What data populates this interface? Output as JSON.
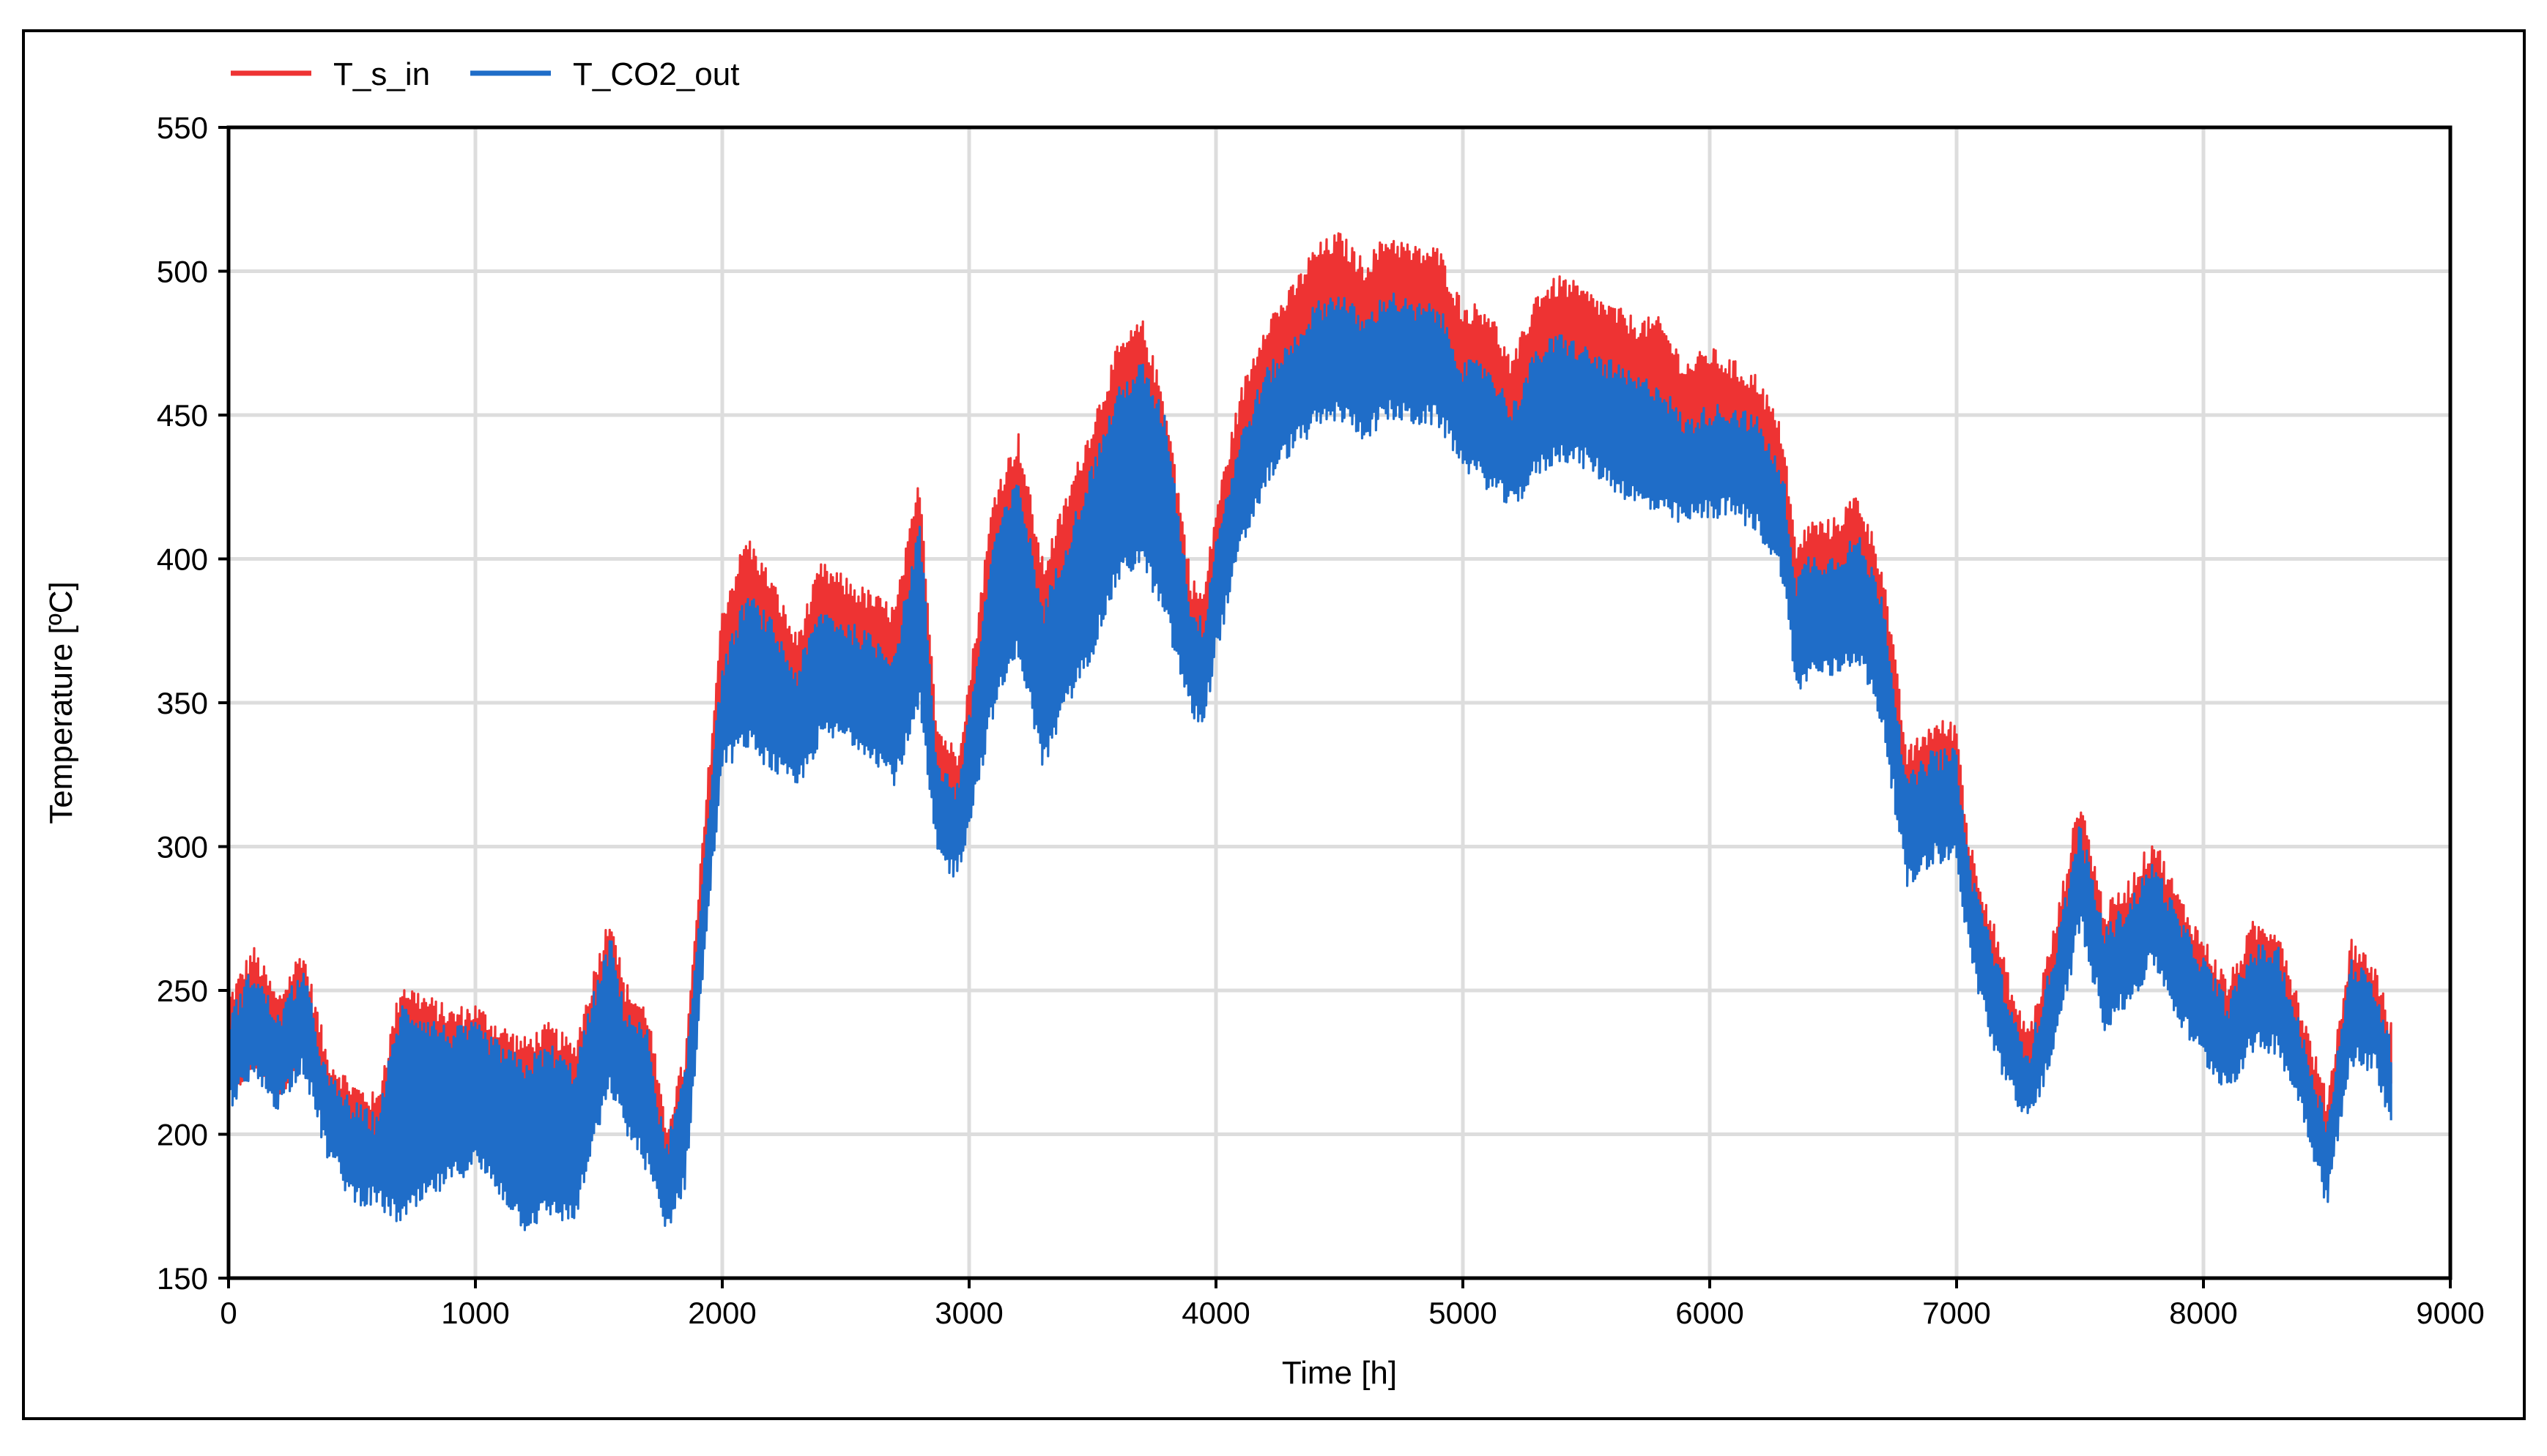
{
  "chart_data": {
    "type": "line",
    "title": "",
    "xlabel": "Time [h]",
    "ylabel": "Temperature [ºC]",
    "xlim": [
      0,
      9000
    ],
    "ylim": [
      150,
      550
    ],
    "xticks": [
      0,
      1000,
      2000,
      3000,
      4000,
      5000,
      6000,
      7000,
      8000,
      9000
    ],
    "yticks": [
      150,
      200,
      250,
      300,
      350,
      400,
      450,
      500,
      550
    ],
    "xtick_labels": [
      "0",
      "1000",
      "2000",
      "3000",
      "4000",
      "5000",
      "6000",
      "7000",
      "8000",
      "9000"
    ],
    "ytick_labels": [
      "150",
      "200",
      "250",
      "300",
      "350",
      "400",
      "450",
      "500",
      "550"
    ],
    "grid": true,
    "legend_position": "top-left",
    "series": [
      {
        "name": "T_s_in",
        "color": "#ee3333",
        "x": [
          0,
          100,
          200,
          300,
          400,
          500,
          600,
          700,
          800,
          900,
          1000,
          1100,
          1200,
          1300,
          1400,
          1500,
          1550,
          1600,
          1700,
          1770,
          1850,
          1950,
          2000,
          2100,
          2200,
          2300,
          2400,
          2500,
          2600,
          2700,
          2800,
          2870,
          2950,
          3000,
          3100,
          3200,
          3300,
          3400,
          3500,
          3600,
          3700,
          3800,
          3900,
          3950,
          4000,
          4100,
          4200,
          4300,
          4400,
          4500,
          4600,
          4700,
          4800,
          4900,
          5000,
          5100,
          5200,
          5300,
          5400,
          5500,
          5600,
          5700,
          5800,
          5900,
          6000,
          6100,
          6200,
          6300,
          6350,
          6400,
          6500,
          6600,
          6700,
          6800,
          6900,
          7000,
          7050,
          7150,
          7250,
          7300,
          7400,
          7500,
          7600,
          7700,
          7800,
          7900,
          8000,
          8100,
          8200,
          8300,
          8400,
          8500,
          8600,
          8700,
          8760
        ],
        "max": [
          245,
          262,
          245,
          262,
          225,
          215,
          210,
          250,
          245,
          240,
          242,
          235,
          230,
          235,
          228,
          260,
          275,
          250,
          240,
          200,
          225,
          330,
          380,
          405,
          390,
          370,
          395,
          390,
          385,
          380,
          425,
          340,
          330,
          355,
          420,
          440,
          395,
          420,
          445,
          470,
          480,
          450,
          390,
          385,
          415,
          455,
          480,
          490,
          505,
          510,
          500,
          510,
          505,
          505,
          485,
          485,
          465,
          490,
          495,
          490,
          485,
          480,
          480,
          465,
          470,
          465,
          460,
          440,
          400,
          410,
          410,
          420,
          395,
          330,
          340,
          340,
          300,
          270,
          240,
          235,
          270,
          315,
          275,
          285,
          300,
          280,
          265,
          250,
          270,
          270,
          240,
          210,
          265,
          255,
          235
        ],
        "min": [
          215,
          225,
          215,
          230,
          200,
          185,
          185,
          185,
          190,
          195,
          200,
          190,
          180,
          185,
          180,
          215,
          230,
          215,
          200,
          175,
          195,
          300,
          350,
          355,
          345,
          335,
          355,
          355,
          350,
          340,
          370,
          310,
          300,
          325,
          375,
          395,
          350,
          375,
          395,
          425,
          430,
          410,
          360,
          350,
          390,
          430,
          455,
          465,
          475,
          480,
          470,
          480,
          475,
          475,
          455,
          450,
          440,
          460,
          465,
          460,
          455,
          450,
          445,
          440,
          440,
          440,
          435,
          415,
          375,
          385,
          385,
          390,
          365,
          305,
          315,
          315,
          275,
          245,
          220,
          215,
          245,
          290,
          250,
          260,
          275,
          255,
          240,
          230,
          245,
          245,
          220,
          190,
          240,
          235,
          215
        ]
      },
      {
        "name": "T_CO2_out",
        "color": "#1f6dc8",
        "x": [
          0,
          100,
          200,
          300,
          400,
          500,
          600,
          700,
          800,
          900,
          1000,
          1100,
          1200,
          1300,
          1400,
          1500,
          1550,
          1600,
          1700,
          1770,
          1850,
          1950,
          2000,
          2100,
          2200,
          2300,
          2400,
          2500,
          2600,
          2700,
          2800,
          2870,
          2950,
          3000,
          3100,
          3200,
          3300,
          3400,
          3500,
          3600,
          3700,
          3800,
          3900,
          3950,
          4000,
          4100,
          4200,
          4300,
          4400,
          4500,
          4600,
          4700,
          4800,
          4900,
          5000,
          5100,
          5200,
          5300,
          5400,
          5500,
          5600,
          5700,
          5800,
          5900,
          6000,
          6100,
          6200,
          6300,
          6350,
          6400,
          6500,
          6600,
          6700,
          6800,
          6900,
          7000,
          7050,
          7150,
          7250,
          7300,
          7400,
          7500,
          7600,
          7700,
          7800,
          7900,
          8000,
          8100,
          8200,
          8300,
          8400,
          8500,
          8600,
          8700,
          8760
        ],
        "max": [
          238,
          255,
          238,
          255,
          218,
          208,
          203,
          242,
          238,
          233,
          235,
          228,
          222,
          228,
          220,
          252,
          265,
          242,
          232,
          192,
          218,
          318,
          360,
          385,
          375,
          358,
          380,
          375,
          370,
          365,
          410,
          328,
          318,
          342,
          405,
          425,
          380,
          405,
          430,
          455,
          465,
          445,
          380,
          375,
          405,
          440,
          462,
          472,
          485,
          490,
          480,
          490,
          485,
          485,
          465,
          465,
          450,
          470,
          475,
          470,
          465,
          460,
          458,
          445,
          450,
          450,
          445,
          425,
          390,
          398,
          398,
          405,
          385,
          320,
          330,
          330,
          292,
          262,
          232,
          228,
          262,
          305,
          268,
          278,
          292,
          272,
          258,
          243,
          262,
          262,
          232,
          202,
          258,
          248,
          228
        ],
        "min": [
          212,
          222,
          212,
          226,
          195,
          180,
          178,
          172,
          180,
          186,
          192,
          182,
          170,
          175,
          172,
          205,
          218,
          205,
          190,
          168,
          185,
          285,
          330,
          338,
          330,
          322,
          340,
          340,
          335,
          325,
          350,
          298,
          292,
          310,
          350,
          370,
          330,
          352,
          370,
          395,
          402,
          380,
          348,
          345,
          370,
          405,
          428,
          440,
          448,
          452,
          445,
          452,
          450,
          450,
          435,
          428,
          420,
          432,
          438,
          435,
          428,
          422,
          418,
          415,
          418,
          418,
          412,
          395,
          355,
          362,
          362,
          368,
          345,
          288,
          298,
          298,
          265,
          232,
          210,
          208,
          232,
          275,
          240,
          248,
          262,
          242,
          228,
          218,
          232,
          232,
          210,
          178,
          228,
          225,
          205
        ]
      }
    ]
  }
}
